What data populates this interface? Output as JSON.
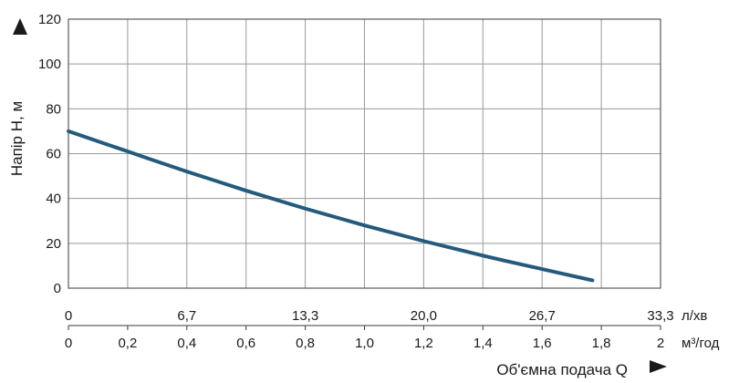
{
  "chart_data": {
    "type": "line",
    "ylabel": "Напір Н, м",
    "xlabel": "Об'ємна подача Q",
    "ylim": [
      0,
      120
    ],
    "yticks": [
      "0",
      "20",
      "40",
      "60",
      "80",
      "100",
      "120"
    ],
    "xlim": [
      0,
      2
    ],
    "x_primary_unit": "м³/год",
    "xticks_primary": [
      "0",
      "0,2",
      "0,4",
      "0,6",
      "0,8",
      "1,0",
      "1,2",
      "1,4",
      "1,6",
      "1,8",
      "2"
    ],
    "x_secondary_unit": "л/хв",
    "xticks_secondary": [
      "0",
      "6,7",
      "13,3",
      "20,0",
      "26,7",
      "33,3"
    ],
    "grid": true,
    "series": [
      {
        "color": "#245a7c",
        "x": [
          0,
          0.2,
          0.4,
          0.6,
          0.8,
          1.0,
          1.2,
          1.4,
          1.6,
          1.77
        ],
        "y": [
          70,
          61,
          52,
          43.5,
          35.5,
          28,
          21,
          14.5,
          8.5,
          3.5
        ]
      }
    ]
  }
}
